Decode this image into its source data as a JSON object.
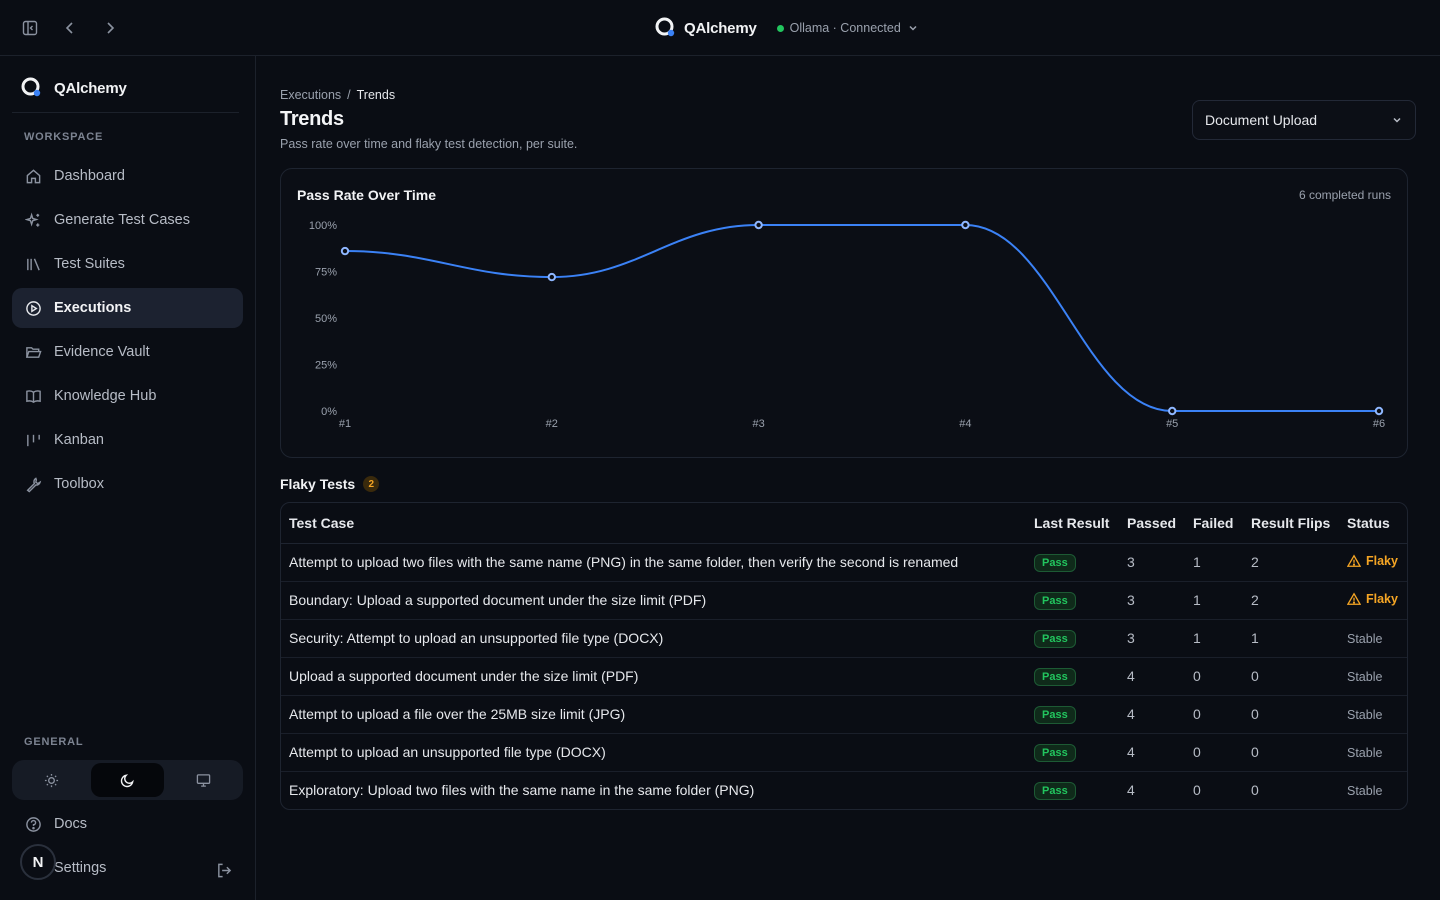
{
  "app": {
    "name": "QAlchemy",
    "connection": {
      "label": "Ollama · Connected",
      "status_color": "#22c55e"
    }
  },
  "sidebar": {
    "brand": "QAlchemy",
    "workspace_label": "WORKSPACE",
    "items": [
      {
        "label": "Dashboard",
        "icon": "home-icon"
      },
      {
        "label": "Generate Test Cases",
        "icon": "sparkles-icon"
      },
      {
        "label": "Test Suites",
        "icon": "library-icon"
      },
      {
        "label": "Executions",
        "icon": "play-circle-icon",
        "active": true
      },
      {
        "label": "Evidence Vault",
        "icon": "folder-open-icon"
      },
      {
        "label": "Knowledge Hub",
        "icon": "book-open-icon"
      },
      {
        "label": "Kanban",
        "icon": "kanban-icon"
      },
      {
        "label": "Toolbox",
        "icon": "wrench-icon"
      }
    ],
    "general_label": "GENERAL",
    "theme_options": [
      "light",
      "dark",
      "system"
    ],
    "theme_selected": "dark",
    "docs_label": "Docs",
    "settings_label": "Settings",
    "avatar_initial": "N"
  },
  "main": {
    "breadcrumb": [
      "Executions",
      "Trends"
    ],
    "title": "Trends",
    "subtitle": "Pass rate over time and flaky test detection, per suite.",
    "suite_select": "Document Upload",
    "chart_card": {
      "title": "Pass Rate Over Time",
      "runs_label": "6 completed runs"
    },
    "flaky": {
      "title": "Flaky Tests",
      "count": "2"
    },
    "table": {
      "columns": [
        "Test Case",
        "Last Result",
        "Passed",
        "Failed",
        "Result Flips",
        "Status"
      ],
      "rows": [
        {
          "test_case": "Attempt to upload two files with the same name (PNG) in the same folder, then verify the second is renamed",
          "last_result": "Pass",
          "passed": "3",
          "failed": "1",
          "flips": "2",
          "status": "Flaky"
        },
        {
          "test_case": "Boundary: Upload a supported document under the size limit (PDF)",
          "last_result": "Pass",
          "passed": "3",
          "failed": "1",
          "flips": "2",
          "status": "Flaky"
        },
        {
          "test_case": "Security: Attempt to upload an unsupported file type (DOCX)",
          "last_result": "Pass",
          "passed": "3",
          "failed": "1",
          "flips": "1",
          "status": "Stable"
        },
        {
          "test_case": "Upload a supported document under the size limit (PDF)",
          "last_result": "Pass",
          "passed": "4",
          "failed": "0",
          "flips": "0",
          "status": "Stable"
        },
        {
          "test_case": "Attempt to upload a file over the 25MB size limit (JPG)",
          "last_result": "Pass",
          "passed": "4",
          "failed": "0",
          "flips": "0",
          "status": "Stable"
        },
        {
          "test_case": "Attempt to upload an unsupported file type (DOCX)",
          "last_result": "Pass",
          "passed": "4",
          "failed": "0",
          "flips": "0",
          "status": "Stable"
        },
        {
          "test_case": "Exploratory: Upload two files with the same name in the same folder (PNG)",
          "last_result": "Pass",
          "passed": "4",
          "failed": "0",
          "flips": "0",
          "status": "Stable"
        }
      ]
    }
  },
  "chart_data": {
    "type": "line",
    "title": "Pass Rate Over Time",
    "categories": [
      "#1",
      "#2",
      "#3",
      "#4",
      "#5",
      "#6"
    ],
    "series": [
      {
        "values": [
          86,
          72,
          100,
          100,
          0,
          0
        ]
      }
    ],
    "y_ticks": [
      "0%",
      "25%",
      "50%",
      "75%",
      "100%"
    ],
    "ylim": [
      0,
      100
    ],
    "grid": false,
    "line_color": "#3b82f6"
  }
}
